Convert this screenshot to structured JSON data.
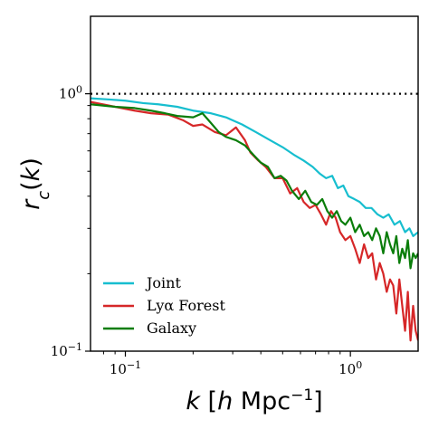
{
  "chart_data": {
    "type": "line",
    "xlabel": "k [h Mpc⁻¹]",
    "ylabel": "r_c(k)",
    "xscale": "log",
    "yscale": "log",
    "xlim": [
      0.07,
      2.0
    ],
    "ylim": [
      0.1,
      2.0
    ],
    "grid": false,
    "legend_placement": "lower-left",
    "x_ticks": [
      {
        "value": 0.1,
        "label": "10",
        "exp": "−1"
      },
      {
        "value": 1.0,
        "label": "10",
        "exp": "0"
      }
    ],
    "y_ticks": [
      {
        "value": 0.1,
        "label": "10",
        "exp": "−1"
      },
      {
        "value": 1.0,
        "label": "10",
        "exp": "0"
      }
    ],
    "reference_line": {
      "y": 1.0,
      "style": "dotted",
      "color": "#000000"
    },
    "series": [
      {
        "name": "Joint",
        "color": "#17becf",
        "x": [
          0.07,
          0.085,
          0.1,
          0.12,
          0.14,
          0.17,
          0.2,
          0.24,
          0.28,
          0.33,
          0.38,
          0.44,
          0.5,
          0.56,
          0.62,
          0.68,
          0.73,
          0.78,
          0.83,
          0.88,
          0.93,
          0.98,
          1.04,
          1.1,
          1.17,
          1.24,
          1.32,
          1.4,
          1.48,
          1.57,
          1.66,
          1.75,
          1.83,
          1.9,
          2.0
        ],
        "y": [
          0.96,
          0.95,
          0.94,
          0.92,
          0.91,
          0.89,
          0.86,
          0.84,
          0.81,
          0.76,
          0.71,
          0.66,
          0.62,
          0.58,
          0.55,
          0.52,
          0.49,
          0.47,
          0.48,
          0.43,
          0.44,
          0.4,
          0.39,
          0.38,
          0.36,
          0.36,
          0.34,
          0.33,
          0.34,
          0.31,
          0.32,
          0.29,
          0.3,
          0.28,
          0.29
        ]
      },
      {
        "name": "Lyα Forest",
        "color": "#d62728",
        "x": [
          0.07,
          0.09,
          0.11,
          0.13,
          0.155,
          0.18,
          0.2,
          0.22,
          0.25,
          0.28,
          0.31,
          0.34,
          0.36,
          0.39,
          0.42,
          0.46,
          0.5,
          0.54,
          0.58,
          0.62,
          0.66,
          0.7,
          0.74,
          0.78,
          0.82,
          0.86,
          0.9,
          0.95,
          1.0,
          1.05,
          1.1,
          1.15,
          1.2,
          1.25,
          1.3,
          1.35,
          1.4,
          1.45,
          1.5,
          1.55,
          1.6,
          1.65,
          1.7,
          1.75,
          1.8,
          1.85,
          1.9,
          1.95,
          2.0
        ],
        "y": [
          0.93,
          0.89,
          0.86,
          0.84,
          0.83,
          0.79,
          0.75,
          0.76,
          0.71,
          0.69,
          0.74,
          0.66,
          0.59,
          0.55,
          0.52,
          0.47,
          0.47,
          0.41,
          0.43,
          0.38,
          0.36,
          0.37,
          0.34,
          0.31,
          0.35,
          0.33,
          0.29,
          0.27,
          0.28,
          0.25,
          0.22,
          0.26,
          0.23,
          0.24,
          0.19,
          0.22,
          0.2,
          0.17,
          0.19,
          0.18,
          0.14,
          0.19,
          0.15,
          0.12,
          0.17,
          0.11,
          0.15,
          0.12,
          0.11
        ]
      },
      {
        "name": "Galaxy",
        "color": "#0a7d0a",
        "x": [
          0.07,
          0.09,
          0.11,
          0.13,
          0.15,
          0.17,
          0.2,
          0.22,
          0.24,
          0.26,
          0.28,
          0.31,
          0.34,
          0.37,
          0.4,
          0.43,
          0.46,
          0.49,
          0.52,
          0.55,
          0.59,
          0.63,
          0.67,
          0.71,
          0.75,
          0.79,
          0.83,
          0.87,
          0.91,
          0.95,
          1.0,
          1.05,
          1.1,
          1.15,
          1.2,
          1.25,
          1.3,
          1.35,
          1.4,
          1.45,
          1.5,
          1.55,
          1.6,
          1.65,
          1.7,
          1.75,
          1.8,
          1.85,
          1.9,
          1.95,
          2.0
        ],
        "y": [
          0.91,
          0.89,
          0.88,
          0.86,
          0.84,
          0.82,
          0.81,
          0.84,
          0.77,
          0.71,
          0.68,
          0.66,
          0.63,
          0.58,
          0.54,
          0.52,
          0.47,
          0.48,
          0.46,
          0.42,
          0.39,
          0.42,
          0.38,
          0.37,
          0.39,
          0.35,
          0.33,
          0.35,
          0.32,
          0.31,
          0.33,
          0.29,
          0.31,
          0.28,
          0.29,
          0.27,
          0.3,
          0.28,
          0.24,
          0.29,
          0.26,
          0.24,
          0.28,
          0.22,
          0.25,
          0.23,
          0.27,
          0.21,
          0.24,
          0.23,
          0.24
        ]
      }
    ]
  }
}
